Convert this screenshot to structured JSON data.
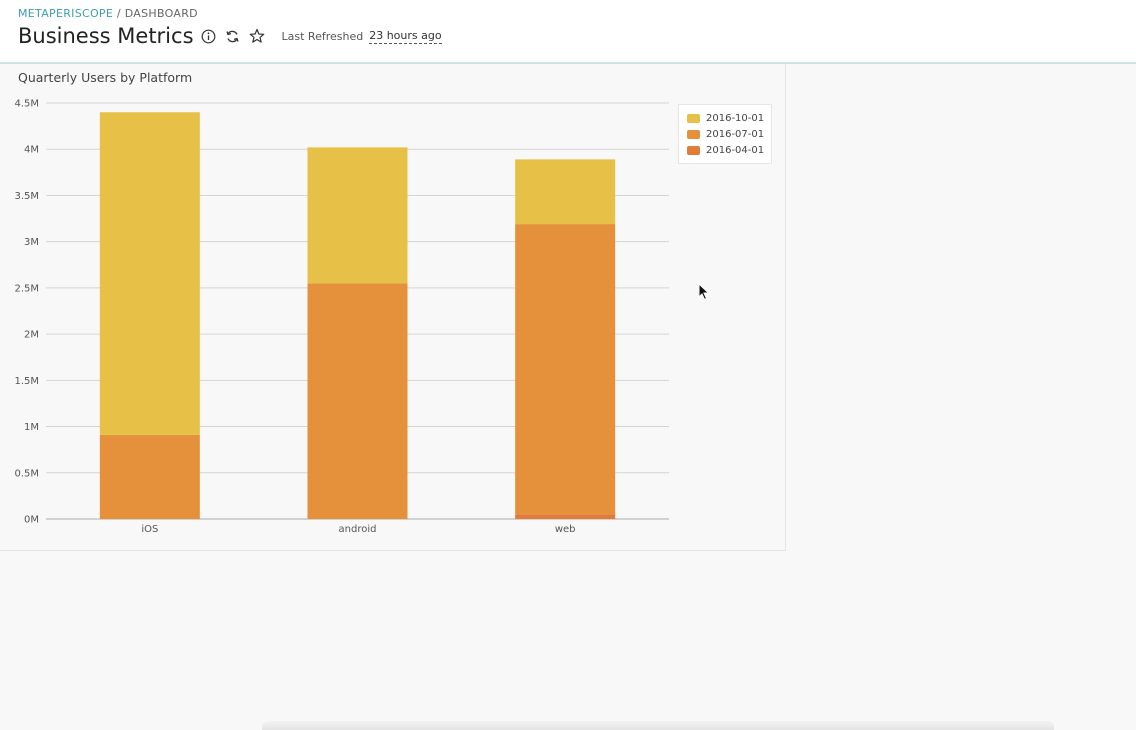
{
  "header": {
    "breadcrumb_app": "METAPERISCOPE",
    "breadcrumb_sep": "/",
    "breadcrumb_page": "DASHBOARD",
    "title": "Business Metrics",
    "icons": [
      "info-icon",
      "refresh-icon",
      "star-icon"
    ],
    "refresh_label": "Last Refreshed",
    "refresh_value": "23 hours ago"
  },
  "chart_data": {
    "type": "bar",
    "stacked": true,
    "title": "Quarterly Users by Platform",
    "xlabel": "",
    "ylabel": "",
    "categories": [
      "iOS",
      "android",
      "web"
    ],
    "ylim": [
      0,
      4500000
    ],
    "yticks": [
      0,
      500000,
      1000000,
      1500000,
      2000000,
      2500000,
      3000000,
      3500000,
      4000000,
      4500000
    ],
    "ytick_labels": [
      "0M",
      "0.5M",
      "1M",
      "1.5M",
      "2M",
      "2.5M",
      "3M",
      "3.5M",
      "4M",
      "4.5M"
    ],
    "grid": true,
    "legend_position": "top-right",
    "series": [
      {
        "name": "2016-04-01",
        "color": "#e07b39",
        "values": [
          0,
          0,
          50000
        ]
      },
      {
        "name": "2016-07-01",
        "color": "#e5913b",
        "values": [
          910000,
          2550000,
          3140000
        ]
      },
      {
        "name": "2016-10-01",
        "color": "#e6c047",
        "values": [
          3490000,
          1470000,
          700000
        ]
      }
    ]
  }
}
